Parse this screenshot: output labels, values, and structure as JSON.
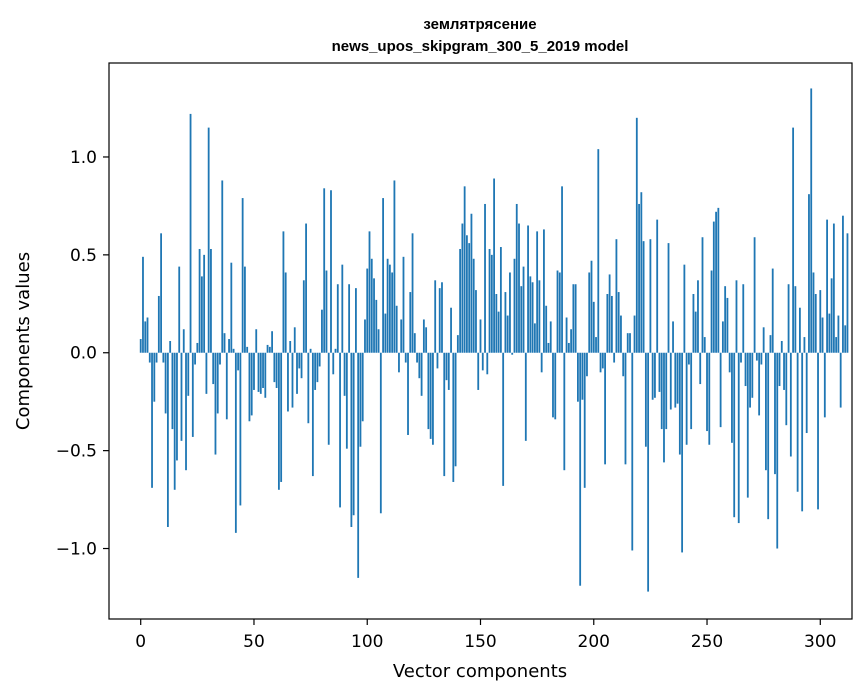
{
  "chart_data": {
    "type": "bar",
    "title": "землятрясение",
    "subtitle": "news_upos_skipgram_300_5_2019 model",
    "xlabel": "Vector components",
    "ylabel": "Components values",
    "xlim": [
      -14,
      314
    ],
    "ylim": [
      -1.36,
      1.48
    ],
    "xticks": [
      0,
      50,
      100,
      150,
      200,
      250,
      300
    ],
    "yticks": [
      -1.0,
      -0.5,
      0.0,
      0.5,
      1.0
    ],
    "ytick_labels": [
      "−1.0",
      "−0.5",
      "0.0",
      "0.5",
      "1.0"
    ],
    "grid": false,
    "bar_color": "#1f77b4",
    "values": [
      0.07,
      0.49,
      0.16,
      0.18,
      -0.05,
      -0.69,
      -0.25,
      -0.05,
      0.29,
      0.61,
      -0.05,
      -0.31,
      -0.89,
      0.06,
      -0.39,
      -0.7,
      -0.55,
      0.44,
      -0.45,
      0.12,
      -0.6,
      -0.22,
      1.22,
      -0.43,
      -0.06,
      0.05,
      0.53,
      0.39,
      0.5,
      -0.21,
      1.15,
      0.53,
      -0.16,
      -0.52,
      -0.31,
      -0.06,
      0.88,
      0.1,
      -0.34,
      0.07,
      0.46,
      0.02,
      -0.92,
      -0.09,
      -0.78,
      0.79,
      0.44,
      0.03,
      -0.35,
      -0.32,
      -0.19,
      0.12,
      -0.2,
      -0.21,
      -0.18,
      -0.23,
      0.04,
      0.03,
      0.11,
      -0.15,
      -0.18,
      -0.7,
      -0.66,
      0.62,
      0.41,
      -0.3,
      0.06,
      -0.28,
      0.13,
      -0.21,
      -0.08,
      -0.13,
      0.37,
      0.66,
      -0.36,
      0.02,
      -0.63,
      -0.19,
      -0.15,
      -0.07,
      0.22,
      0.84,
      0.42,
      -0.47,
      0.83,
      -0.11,
      0.02,
      0.35,
      -0.79,
      0.45,
      -0.22,
      -0.49,
      0.35,
      -0.89,
      -0.83,
      0.33,
      -1.15,
      -0.48,
      -0.35,
      0.17,
      0.43,
      0.62,
      0.48,
      0.38,
      0.27,
      0.12,
      -0.82,
      0.79,
      0.2,
      0.48,
      0.45,
      0.41,
      0.88,
      0.24,
      -0.1,
      0.17,
      0.49,
      -0.05,
      -0.42,
      0.31,
      0.61,
      0.1,
      -0.05,
      -0.13,
      -0.22,
      0.17,
      0.13,
      -0.39,
      -0.44,
      -0.47,
      0.37,
      -0.08,
      0.33,
      0.36,
      -0.63,
      -0.14,
      -0.19,
      0.23,
      -0.66,
      -0.58,
      0.09,
      0.53,
      0.66,
      0.85,
      0.6,
      0.56,
      0.71,
      0.48,
      0.32,
      -0.19,
      0.17,
      -0.09,
      0.76,
      -0.11,
      0.53,
      0.5,
      0.89,
      0.3,
      0.21,
      0.54,
      -0.68,
      0.31,
      0.19,
      0.41,
      -0.01,
      0.48,
      0.76,
      0.66,
      0.34,
      0.44,
      -0.45,
      0.65,
      0.39,
      0.36,
      0.15,
      0.62,
      0.37,
      -0.1,
      0.63,
      0.24,
      0.05,
      0.16,
      -0.33,
      -0.34,
      0.42,
      0.41,
      0.85,
      -0.6,
      0.18,
      0.05,
      0.12,
      0.35,
      0.35,
      -0.25,
      -1.19,
      -0.24,
      -0.69,
      -0.12,
      0.41,
      0.47,
      0.26,
      0.08,
      1.04,
      -0.1,
      -0.08,
      -0.57,
      0.3,
      0.4,
      0.29,
      -0.05,
      0.58,
      0.31,
      0.19,
      -0.12,
      -0.57,
      0.1,
      0.1,
      -1.01,
      0.19,
      1.2,
      0.76,
      0.82,
      0.57,
      -0.48,
      -1.22,
      0.58,
      -0.24,
      -0.23,
      0.68,
      -0.2,
      -0.39,
      -0.56,
      -0.39,
      0.56,
      -0.29,
      0.16,
      -0.28,
      -0.26,
      -0.52,
      -1.02,
      0.45,
      -0.47,
      -0.06,
      -0.39,
      0.3,
      0.21,
      0.37,
      -0.16,
      0.59,
      0.08,
      -0.4,
      -0.47,
      0.42,
      0.67,
      0.72,
      0.74,
      -0.38,
      0.16,
      0.34,
      0.28,
      -0.1,
      -0.46,
      -0.84,
      0.37,
      -0.87,
      -0.05,
      0.35,
      -0.17,
      -0.74,
      -0.28,
      -0.23,
      0.59,
      -0.04,
      -0.32,
      -0.06,
      0.13,
      -0.6,
      -0.85,
      0.09,
      0.43,
      -0.62,
      -1.0,
      -0.17,
      0.06,
      -0.19,
      -0.37,
      0.35,
      -0.53,
      1.15,
      0.34,
      -0.71,
      0.23,
      -0.81,
      0.08,
      -0.41,
      0.81,
      1.35,
      0.41,
      0.3,
      -0.8,
      0.32,
      0.18,
      -0.33,
      0.68,
      0.2,
      0.38,
      0.66,
      0.08,
      0.19,
      -0.28,
      0.7,
      0.14,
      0.61,
      0.0
    ]
  }
}
